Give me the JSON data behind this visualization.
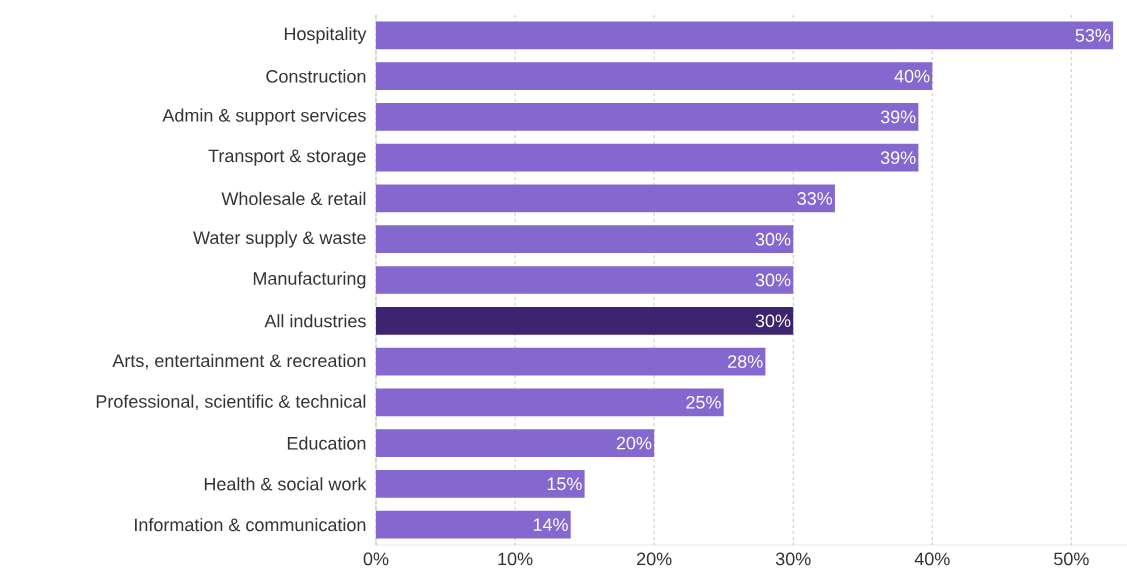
{
  "chart_data": {
    "type": "bar",
    "orientation": "horizontal",
    "categories": [
      "Hospitality",
      "Construction",
      "Admin & support services",
      "Transport & storage",
      "Wholesale & retail",
      "Water supply & waste",
      "Manufacturing",
      "All industries",
      "Arts, entertainment & recreation",
      "Professional, scientific & technical",
      "Education",
      "Health & social work",
      "Information & communication"
    ],
    "values": [
      53,
      40,
      39,
      39,
      33,
      30,
      30,
      30,
      28,
      25,
      20,
      15,
      14
    ],
    "value_labels": [
      "53%",
      "40%",
      "39%",
      "39%",
      "33%",
      "30%",
      "30%",
      "30%",
      "28%",
      "25%",
      "20%",
      "15%",
      "14%"
    ],
    "colors": [
      "#8568cf",
      "#8568cf",
      "#8568cf",
      "#8568cf",
      "#8568cf",
      "#8568cf",
      "#8568cf",
      "#3d2471",
      "#8568cf",
      "#8568cf",
      "#8568cf",
      "#8568cf",
      "#8568cf"
    ],
    "xlim": [
      0,
      54
    ],
    "xticks": [
      {
        "value": 0,
        "label": "0%"
      },
      {
        "value": 10,
        "label": "10%"
      },
      {
        "value": 20,
        "label": "20%"
      },
      {
        "value": 30,
        "label": "30%"
      },
      {
        "value": 40,
        "label": "40%"
      },
      {
        "value": 50,
        "label": "50%"
      }
    ],
    "grid": "x"
  }
}
